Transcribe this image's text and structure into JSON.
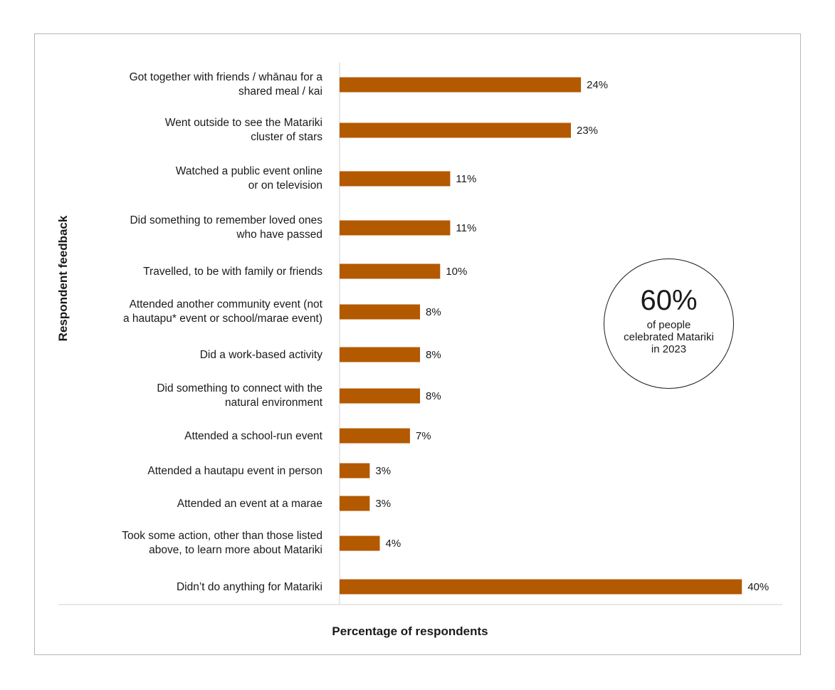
{
  "chart_data": {
    "type": "bar",
    "orientation": "horizontal",
    "xlabel": "Percentage of respondents",
    "ylabel": "Respondent feedback",
    "xlim": [
      0,
      40
    ],
    "bar_color": "#B35900",
    "value_suffix": "%",
    "categories": [
      [
        "Got together with friends / whānau for a",
        "shared meal / kai"
      ],
      [
        "Went outside to see the Matariki",
        "cluster of stars"
      ],
      [
        "Watched a public event online",
        "or on television"
      ],
      [
        "Did something to remember loved ones",
        "who have passed"
      ],
      [
        "Travelled, to be with family or friends"
      ],
      [
        "Attended another community event (not",
        "a hautapu* event or school/marae event)"
      ],
      [
        "Did a work-based activity"
      ],
      [
        "Did something to connect with the",
        "natural environment"
      ],
      [
        "Attended a school-run event"
      ],
      [
        "Attended a hautapu event in person"
      ],
      [
        "Attended an event at a marae"
      ],
      [
        "Took some action, other than those listed",
        "above, to learn more about Matariki"
      ],
      [
        "Didn’t do anything for Matariki"
      ]
    ],
    "values": [
      24,
      23,
      11,
      11,
      10,
      8,
      8,
      8,
      7,
      3,
      3,
      4,
      40
    ],
    "grid": false,
    "annotation": {
      "value": "60%",
      "text": "of people celebrated Matariki in 2023"
    }
  }
}
